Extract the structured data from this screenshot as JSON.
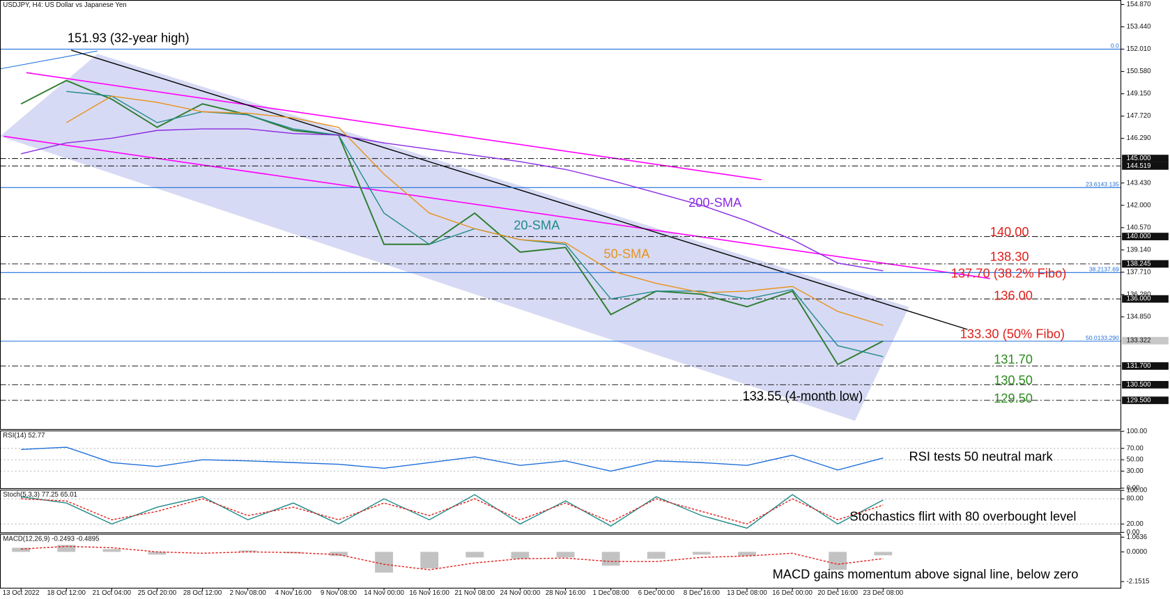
{
  "chart_data": [
    {
      "type": "line",
      "title": "USDJPY, H4:  US Dollar vs Japanese Yen",
      "categories": [
        "13 Oct 2022",
        "18 Oct 12:00",
        "21 Oct 04:00",
        "25 Oct 20:00",
        "28 Oct 12:00",
        "2 Nov 08:00",
        "4 Nov 16:00",
        "9 Nov 08:00",
        "14 Nov 00:00",
        "16 Nov 16:00",
        "21 Nov 08:00",
        "24 Nov 00:00",
        "28 Nov 16:00",
        "1 Dec 08:00",
        "6 Dec 00:00",
        "8 Dec 16:00",
        "13 Dec 08:00",
        "16 Dec 00:00",
        "20 Dec 16:00",
        "23 Dec 08:00"
      ],
      "ylim": [
        127.66,
        155.16
      ],
      "yticks": [
        {
          "value": 154.87,
          "label": "154.870"
        },
        {
          "value": 153.44,
          "label": "153.440"
        },
        {
          "value": 152.01,
          "label": "152.010"
        },
        {
          "value": 150.58,
          "label": "150.580"
        },
        {
          "value": 149.15,
          "label": "149.150"
        },
        {
          "value": 147.72,
          "label": "147.720"
        },
        {
          "value": 146.29,
          "label": "146.290"
        },
        {
          "value": 143.43,
          "label": "143.430"
        },
        {
          "value": 142,
          "label": "142.000"
        },
        {
          "value": 140.57,
          "label": "140.570"
        },
        {
          "value": 139.14,
          "label": "139.140"
        },
        {
          "value": 137.71,
          "label": "137.710"
        },
        {
          "value": 136.28,
          "label": "136.280"
        },
        {
          "value": 134.85,
          "label": "134.850"
        }
      ],
      "series": [
        {
          "color": "#2e7d32",
          "values": [
            148.5,
            150.0,
            148.8,
            147.0,
            148.5,
            147.8,
            146.8,
            146.5,
            139.5,
            139.5,
            141.5,
            139.0,
            139.3,
            135.0,
            136.5,
            136.3,
            135.5,
            136.5,
            131.8,
            133.3
          ]
        },
        {
          "name": "20-SMA",
          "color": "#1f8a8a",
          "values": [
            null,
            149.3,
            149.0,
            147.3,
            148.0,
            147.8,
            146.9,
            146.5,
            141.5,
            139.5,
            140.5,
            139.8,
            139.5,
            136.0,
            136.5,
            136.5,
            136.0,
            136.6,
            133.0,
            132.3
          ]
        },
        {
          "name": "50-SMA",
          "color": "#e8921a",
          "values": [
            null,
            147.3,
            149.0,
            148.6,
            148.0,
            147.9,
            147.6,
            147.0,
            144.0,
            141.5,
            140.5,
            139.8,
            139.6,
            137.8,
            137.0,
            136.4,
            136.5,
            136.8,
            135.2,
            134.3
          ]
        },
        {
          "name": "200-SMA",
          "color": "#8a2be2",
          "values": [
            145.3,
            146.0,
            146.3,
            146.8,
            146.9,
            146.9,
            146.6,
            146.5,
            146.0,
            145.6,
            145.2,
            144.8,
            144.3,
            143.6,
            142.8,
            142.0,
            141.0,
            139.8,
            138.3,
            137.8
          ]
        }
      ],
      "fibo_levels": [
        {
          "level": "0.0",
          "value": 152.01
        },
        {
          "value": 143.135,
          "label": "23.6143.135"
        },
        {
          "value": 137.69,
          "label": "38.2137.69"
        },
        {
          "value": 133.29,
          "label": "50.0133.290"
        }
      ],
      "levels": [
        {
          "value": 145,
          "label": "145.000"
        },
        {
          "value": 144.519,
          "label": "144.519"
        },
        {
          "value": 140,
          "label": "140.000"
        },
        {
          "value": 138.245,
          "label": "138.245"
        },
        {
          "value": 136,
          "label": "136.000"
        },
        {
          "value": 131.7,
          "label": "131.700"
        },
        {
          "value": 130.5,
          "label": "130.500"
        },
        {
          "value": 129.5,
          "label": "129.500"
        }
      ],
      "current_price": {
        "value": 133.322,
        "label": "133.322"
      },
      "annotations": [
        "151.93 (32-year high)",
        "140.00",
        "138.30",
        "137.70 (38.2% Fibo)",
        "136.00",
        "133.30 (50% Fibo)",
        "131.70",
        "130.50",
        "129.50",
        "133.55 (4-month low)"
      ]
    },
    {
      "type": "line",
      "title": "RSI(14) 52.77",
      "annotation": "RSI tests 50 neutral mark",
      "ylim": [
        0,
        100
      ],
      "yticks": [
        {
          "value": 100,
          "label": "100.00"
        },
        {
          "value": 70,
          "label": "70.00"
        },
        {
          "value": 50,
          "label": "50.00"
        },
        {
          "value": 30,
          "label": "30.00"
        },
        {
          "value": 0,
          "label": "0.00"
        }
      ],
      "series": [
        {
          "color": "#1e6fd9",
          "values": [
            68,
            72,
            45,
            38,
            50,
            48,
            45,
            42,
            35,
            45,
            55,
            40,
            48,
            30,
            48,
            45,
            40,
            58,
            32,
            53
          ]
        }
      ]
    },
    {
      "type": "line",
      "title": "Stoch(5,3,3) 77.25 65.01",
      "annotation": "Stochastics flirt with 80 overbought level",
      "ylim": [
        0,
        100
      ],
      "yticks": [
        {
          "value": 100,
          "label": "100.00"
        },
        {
          "value": 80,
          "label": "80.00"
        },
        {
          "value": 20,
          "label": "20.00"
        },
        {
          "value": 0,
          "label": "0.00"
        }
      ],
      "series": [
        {
          "color": "#1f8a8a",
          "values": [
            85,
            70,
            20,
            60,
            85,
            30,
            70,
            20,
            80,
            30,
            90,
            20,
            75,
            15,
            85,
            40,
            10,
            90,
            20,
            77.25
          ]
        },
        {
          "color": "#e0201b",
          "dashed": true,
          "values": [
            80,
            75,
            30,
            50,
            80,
            40,
            60,
            30,
            70,
            40,
            80,
            30,
            70,
            25,
            80,
            50,
            20,
            80,
            30,
            65.01
          ]
        }
      ]
    },
    {
      "type": "bar",
      "title": "MACD(12,26,9) -0.2493 -0.4895",
      "annotation": "MACD gains momentum above signal line, below zero",
      "ylim": [
        -2.6,
        1.25
      ],
      "yticks": [
        {
          "value": 1.0636,
          "label": "1.0636"
        },
        {
          "value": 0,
          "label": "0.0000"
        },
        {
          "value": -2.1515,
          "label": "-2.1515"
        }
      ],
      "series": [
        {
          "style": "bar",
          "color": "#9a9a9a",
          "values": [
            0.3,
            0.5,
            0.2,
            -0.2,
            0.0,
            0.1,
            -0.1,
            -0.3,
            -1.5,
            -1.2,
            -0.4,
            -0.5,
            -0.4,
            -1.0,
            -0.5,
            -0.2,
            -0.3,
            0.0,
            -1.3,
            -0.2493
          ]
        },
        {
          "style": "line",
          "dashed": true,
          "color": "#e0201b",
          "values": [
            0.2,
            0.4,
            0.3,
            0.0,
            -0.1,
            0.0,
            -0.05,
            -0.2,
            -0.9,
            -1.3,
            -0.8,
            -0.5,
            -0.45,
            -0.7,
            -0.7,
            -0.4,
            -0.3,
            -0.1,
            -0.9,
            -0.4895
          ]
        }
      ]
    }
  ]
}
